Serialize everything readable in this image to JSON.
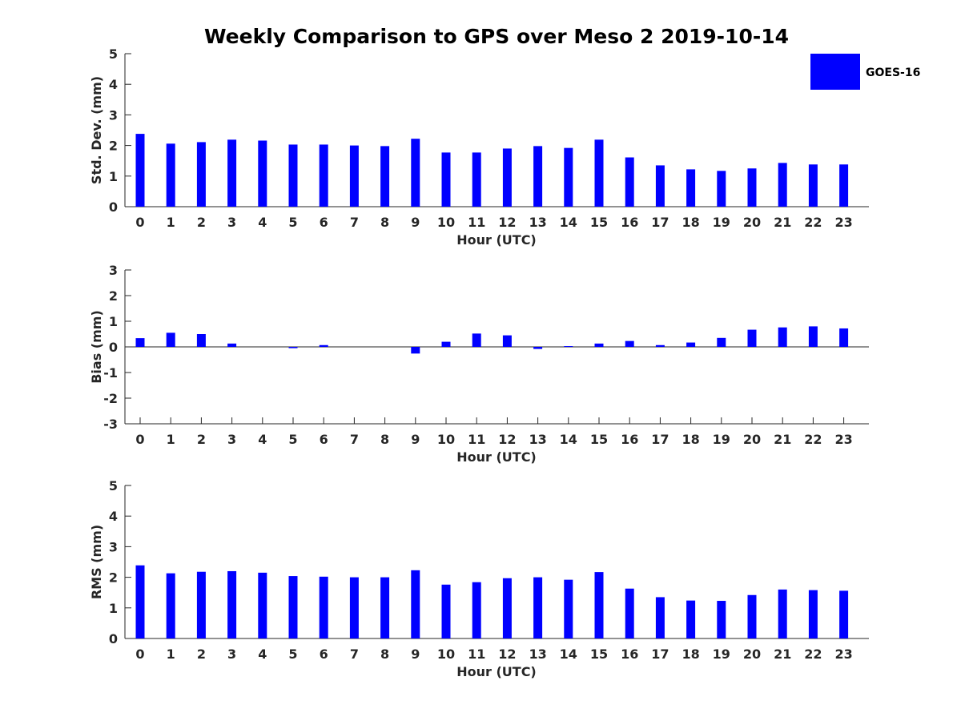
{
  "chart_data": {
    "title": "Weekly Comparison to GPS over Meso 2 2019-10-14",
    "legend": {
      "label": "GOES-16",
      "color": "#0000ff",
      "placement": "top-right"
    },
    "panels": [
      {
        "type": "bar",
        "ylabel": "Std. Dev. (mm)",
        "xlabel": "Hour (UTC)",
        "ylim": [
          0,
          5
        ],
        "yticks": [
          0,
          1,
          2,
          3,
          4,
          5
        ],
        "categories": [
          "0",
          "1",
          "2",
          "3",
          "4",
          "5",
          "6",
          "7",
          "8",
          "9",
          "10",
          "11",
          "12",
          "13",
          "14",
          "15",
          "16",
          "17",
          "18",
          "19",
          "20",
          "21",
          "22",
          "23"
        ],
        "series": [
          {
            "name": "GOES-16",
            "values": [
              2.38,
              2.06,
              2.11,
              2.19,
              2.16,
              2.03,
              2.03,
              2.0,
              1.98,
              2.22,
              1.77,
              1.77,
              1.9,
              1.98,
              1.92,
              2.19,
              1.61,
              1.35,
              1.22,
              1.17,
              1.25,
              1.43,
              1.38,
              1.38
            ]
          }
        ]
      },
      {
        "type": "bar",
        "ylabel": "Bias (mm)",
        "xlabel": "Hour (UTC)",
        "ylim": [
          -3,
          3
        ],
        "yticks": [
          -3,
          -2,
          -1,
          0,
          1,
          2,
          3
        ],
        "categories": [
          "0",
          "1",
          "2",
          "3",
          "4",
          "5",
          "6",
          "7",
          "8",
          "9",
          "10",
          "11",
          "12",
          "13",
          "14",
          "15",
          "16",
          "17",
          "18",
          "19",
          "20",
          "21",
          "22",
          "23"
        ],
        "series": [
          {
            "name": "GOES-16",
            "values": [
              0.34,
              0.55,
              0.5,
              0.13,
              0.0,
              -0.05,
              0.07,
              0.0,
              0.0,
              -0.26,
              0.2,
              0.52,
              0.45,
              -0.08,
              0.03,
              0.13,
              0.23,
              0.07,
              0.17,
              0.35,
              0.67,
              0.76,
              0.8,
              0.72
            ]
          }
        ]
      },
      {
        "type": "bar",
        "ylabel": "RMS (mm)",
        "xlabel": "Hour (UTC)",
        "ylim": [
          0,
          5
        ],
        "yticks": [
          0,
          1,
          2,
          3,
          4,
          5
        ],
        "categories": [
          "0",
          "1",
          "2",
          "3",
          "4",
          "5",
          "6",
          "7",
          "8",
          "9",
          "10",
          "11",
          "12",
          "13",
          "14",
          "15",
          "16",
          "17",
          "18",
          "19",
          "20",
          "21",
          "22",
          "23"
        ],
        "series": [
          {
            "name": "GOES-16",
            "values": [
              2.39,
              2.13,
              2.18,
              2.2,
              2.15,
              2.04,
              2.02,
              2.0,
              2.0,
              2.23,
              1.76,
              1.84,
              1.97,
              2.0,
              1.92,
              2.17,
              1.63,
              1.35,
              1.24,
              1.23,
              1.42,
              1.6,
              1.58,
              1.56
            ]
          }
        ]
      }
    ]
  }
}
